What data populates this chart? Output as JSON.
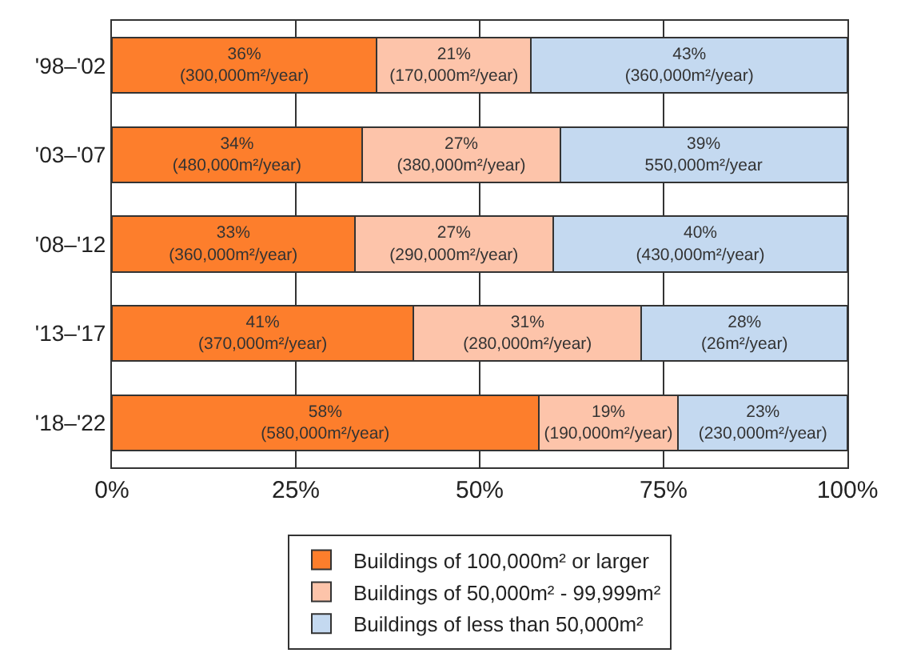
{
  "chart_data": {
    "type": "bar",
    "orientation": "horizontal",
    "stacked": true,
    "categories": [
      "'98–'02",
      "'03–'07",
      "'08–'12",
      "'13–'17",
      "'18–'22"
    ],
    "series": [
      {
        "name": "Buildings of 100,000m² or larger",
        "color": "#fd7e2c",
        "values": [
          36,
          34,
          33,
          41,
          58
        ],
        "value_labels": [
          "36%\n(300,000m²/year)",
          "34%\n(480,000m²/year)",
          "33%\n(360,000m²/year)",
          "41%\n(370,000m²/year)",
          "58%\n(580,000m²/year)"
        ]
      },
      {
        "name": "Buildings of 50,000m² - 99,999m²",
        "color": "#fdc4aa",
        "values": [
          21,
          27,
          27,
          31,
          19
        ],
        "value_labels": [
          "21%\n(170,000m²/year)",
          "27%\n(380,000m²/year)",
          "27%\n(290,000m²/year)",
          "31%\n(280,000m²/year)",
          "19%\n(190,000m²/year)"
        ]
      },
      {
        "name": "Buildings of less than 50,000m²",
        "color": "#c4d9f0",
        "values": [
          43,
          39,
          40,
          28,
          23
        ],
        "value_labels": [
          "43%\n(360,000m²/year)",
          "39%\n550,000m²/year",
          "40%\n(430,000m²/year)",
          "28%\n(26m²/year)",
          "23%\n(230,000m²/year)"
        ]
      }
    ],
    "xlim": [
      0,
      100
    ],
    "xticks": [
      {
        "value": 0,
        "label": "0%"
      },
      {
        "value": 25,
        "label": "25%"
      },
      {
        "value": 50,
        "label": "50%"
      },
      {
        "value": 75,
        "label": "75%"
      },
      {
        "value": 100,
        "label": "100%"
      }
    ],
    "grid": "x",
    "legend": "bottom"
  }
}
